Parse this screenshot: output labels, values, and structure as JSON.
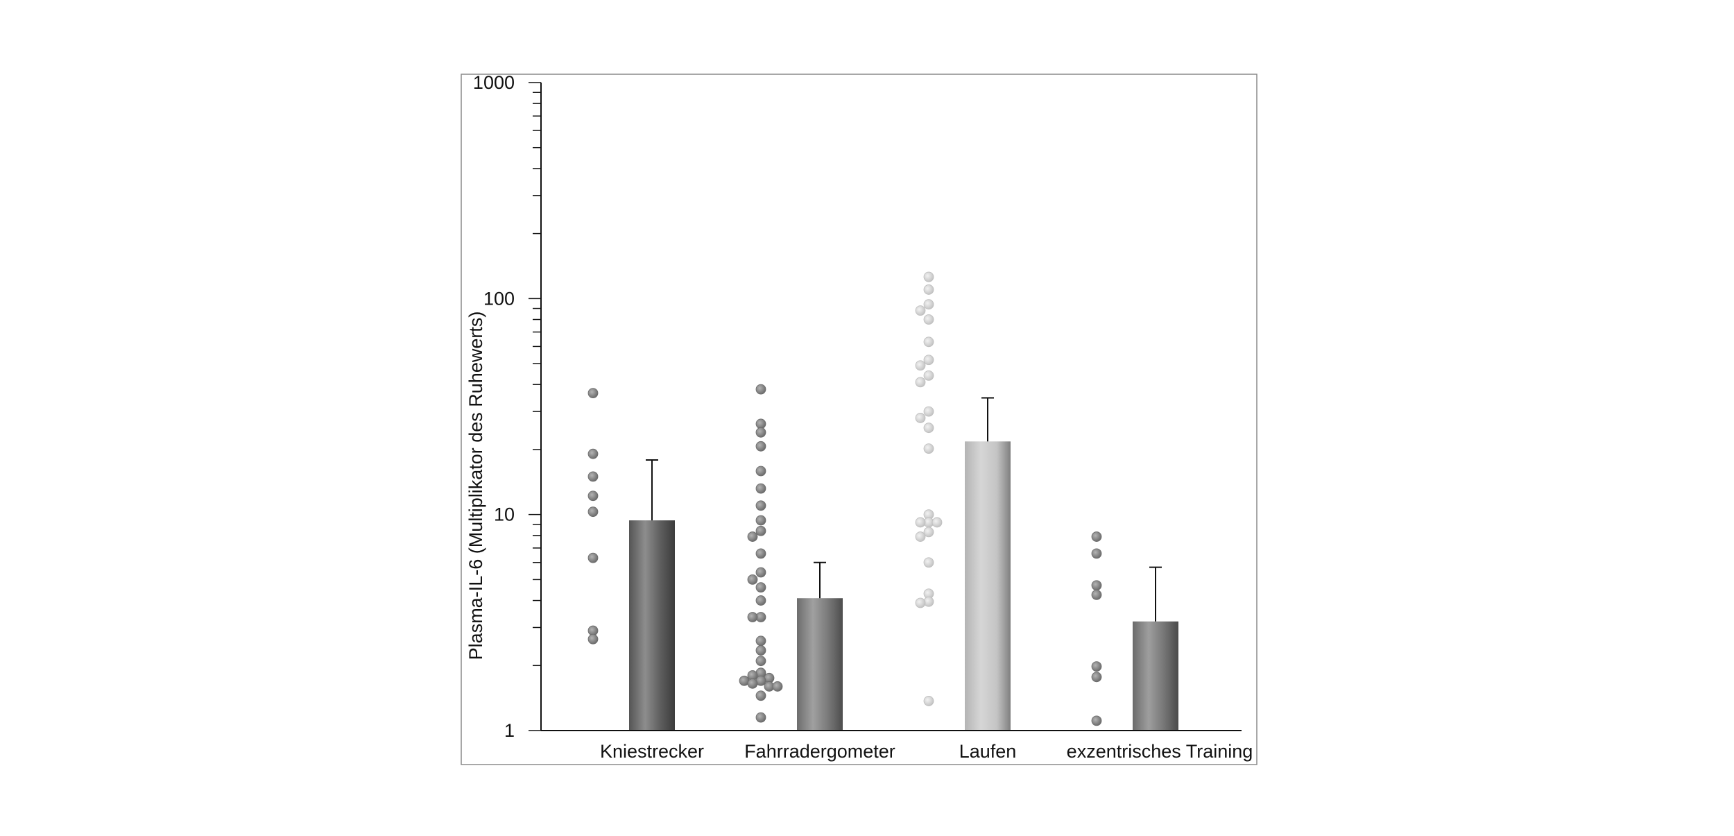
{
  "chart_data": {
    "type": "bar",
    "title": "",
    "xlabel": "",
    "ylabel": "Plasma-IL-6 (Multiplikator des Ruhewerts)",
    "yscale": "log",
    "ylim": [
      1,
      1000
    ],
    "y_ticks": [
      "1",
      "10",
      "100",
      "1000"
    ],
    "grid": false,
    "legend": "none",
    "categories": [
      "Kniestrecker",
      "Fahrradergometer",
      "Laufen",
      "exzentrisches Training"
    ],
    "values": [
      9.4,
      4.1,
      21.8,
      3.2
    ],
    "error_upper": [
      17.9,
      6.0,
      34.7,
      5.7
    ],
    "bar_colors": [
      "#5c5c5c",
      "#777777",
      "#c4c4c4",
      "#747474"
    ],
    "point_colors": [
      "#7b7b7b",
      "#7b7b7b",
      "#d0d0d0",
      "#7b7b7b"
    ],
    "points": [
      [
        36.5,
        19.1,
        15.0,
        12.2,
        10.3,
        6.3,
        2.9,
        2.65
      ],
      [
        38.0,
        26.3,
        24.0,
        20.7,
        15.9,
        13.2,
        11.0,
        9.4,
        8.4,
        7.9,
        6.6,
        5.4,
        5.0,
        4.6,
        4.0,
        3.35,
        3.35,
        2.6,
        2.35,
        2.1,
        1.85,
        1.8,
        1.75,
        1.7,
        1.7,
        1.65,
        1.6,
        1.6,
        1.45,
        1.15
      ],
      [
        126,
        110,
        94,
        88,
        80,
        63,
        52,
        49,
        44,
        41,
        30,
        28,
        25.2,
        20.2,
        10.0,
        9.2,
        9.2,
        9.2,
        8.3,
        7.9,
        6.0,
        4.3,
        3.95,
        3.9,
        1.37
      ],
      [
        7.9,
        6.6,
        4.7,
        4.25,
        1.98,
        1.77,
        1.11
      ]
    ]
  }
}
